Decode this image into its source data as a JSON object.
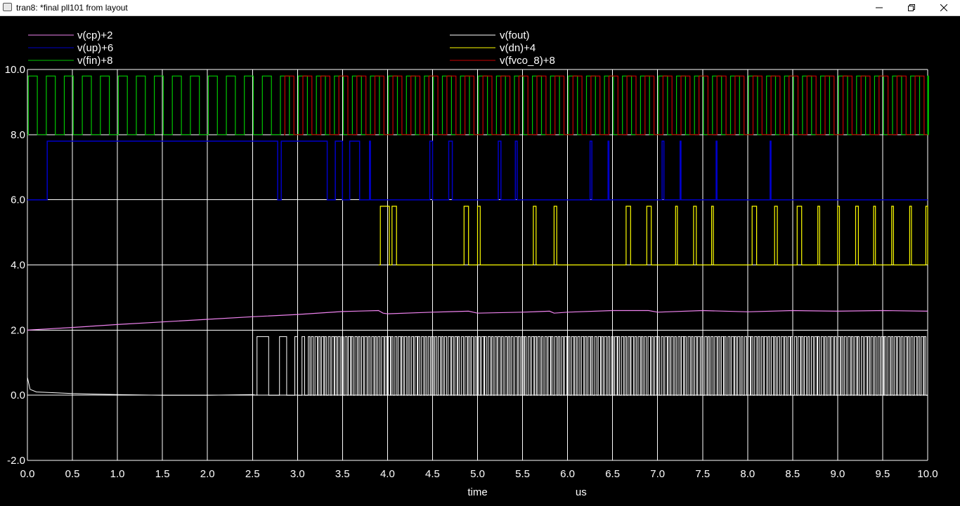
{
  "window": {
    "title": "tran8: *final pll101 from layout",
    "icons": {
      "app": "app-window-icon",
      "minimize": "minimize-icon",
      "maximize": "restore-icon",
      "close": "close-icon"
    }
  },
  "colors": {
    "background": "#000000",
    "grid": "#ffffff",
    "cp": "#ee82ee",
    "up": "#0000c8",
    "fin": "#00c800",
    "fout": "#ffffff",
    "dn": "#ffff00",
    "fvco": "#c80000"
  },
  "chart_data": {
    "type": "line",
    "xlabel": "time",
    "xunit": "us",
    "xlim": [
      0,
      10
    ],
    "ylim": [
      -2,
      10
    ],
    "grid": true,
    "legend_placement": "top",
    "x_ticks": [
      "0.0",
      "0.5",
      "1.0",
      "1.5",
      "2.0",
      "2.5",
      "3.0",
      "3.5",
      "4.0",
      "4.5",
      "5.0",
      "5.5",
      "6.0",
      "6.5",
      "7.0",
      "7.5",
      "8.0",
      "8.5",
      "9.0",
      "9.5",
      "10.0"
    ],
    "y_ticks": [
      "10.0",
      "8.0",
      "6.0",
      "4.0",
      "2.0",
      "0.0",
      "-2.0"
    ],
    "series": [
      {
        "key": "cp",
        "name": "v(cp)+2",
        "legend_col": 0,
        "legend_row": 0
      },
      {
        "key": "up",
        "name": "v(up)+6",
        "legend_col": 0,
        "legend_row": 1
      },
      {
        "key": "fin",
        "name": "v(fin)+8",
        "legend_col": 0,
        "legend_row": 2
      },
      {
        "key": "fout",
        "name": "v(fout)",
        "legend_col": 1,
        "legend_row": 0
      },
      {
        "key": "dn",
        "name": "v(dn)+4",
        "legend_col": 1,
        "legend_row": 1
      },
      {
        "key": "fvco",
        "name": "v(fvco_8)+8",
        "legend_col": 1,
        "legend_row": 2
      }
    ],
    "traces": {
      "cp": {
        "points": [
          [
            0,
            2.0
          ],
          [
            0.5,
            2.08
          ],
          [
            1,
            2.17
          ],
          [
            1.5,
            2.25
          ],
          [
            2,
            2.33
          ],
          [
            2.5,
            2.41
          ],
          [
            3,
            2.48
          ],
          [
            3.5,
            2.57
          ],
          [
            3.9,
            2.6
          ],
          [
            3.95,
            2.52
          ],
          [
            4.0,
            2.5
          ],
          [
            4.5,
            2.55
          ],
          [
            4.9,
            2.58
          ],
          [
            5.0,
            2.52
          ],
          [
            5.5,
            2.55
          ],
          [
            5.8,
            2.58
          ],
          [
            5.85,
            2.52
          ],
          [
            6.0,
            2.55
          ],
          [
            6.5,
            2.6
          ],
          [
            6.9,
            2.6
          ],
          [
            7.0,
            2.55
          ],
          [
            7.5,
            2.6
          ],
          [
            8.0,
            2.56
          ],
          [
            8.5,
            2.6
          ],
          [
            9.0,
            2.58
          ],
          [
            9.5,
            2.6
          ],
          [
            10,
            2.58
          ]
        ]
      },
      "up": {
        "base": 6.0,
        "high": 7.8,
        "pulses": [
          [
            0.22,
            2.78
          ],
          [
            2.82,
            3.33
          ],
          [
            3.42,
            3.5
          ],
          [
            3.58,
            3.69
          ],
          [
            3.8,
            3.81
          ],
          [
            4.47,
            4.5
          ],
          [
            4.68,
            4.72
          ],
          [
            5.23,
            5.26
          ],
          [
            5.42,
            5.44
          ],
          [
            6.25,
            6.27
          ],
          [
            6.45,
            6.46
          ],
          [
            7.05,
            7.07
          ],
          [
            7.25,
            7.26
          ],
          [
            7.65,
            7.66
          ],
          [
            8.25,
            8.26
          ]
        ]
      },
      "dn": {
        "base": 4.0,
        "high": 5.8,
        "pulses": [
          [
            3.92,
            4.02
          ],
          [
            4.05,
            4.1
          ],
          [
            4.85,
            4.9
          ],
          [
            5.0,
            5.03
          ],
          [
            5.62,
            5.65
          ],
          [
            5.85,
            5.88
          ],
          [
            6.65,
            6.7
          ],
          [
            6.88,
            6.93
          ],
          [
            7.2,
            7.22
          ],
          [
            7.4,
            7.43
          ],
          [
            7.6,
            7.62
          ],
          [
            8.05,
            8.1
          ],
          [
            8.3,
            8.33
          ],
          [
            8.55,
            8.6
          ],
          [
            8.78,
            8.8
          ],
          [
            9.0,
            9.02
          ],
          [
            9.2,
            9.23
          ],
          [
            9.4,
            9.42
          ],
          [
            9.6,
            9.62
          ],
          [
            9.8,
            9.82
          ],
          [
            9.98,
            10.0
          ]
        ]
      },
      "fin": {
        "low": 8.0,
        "high": 9.8,
        "period": 0.2,
        "start": 0.0
      },
      "fvco": {
        "low": 8.0,
        "high": 9.8,
        "period": 0.2,
        "start": 2.85
      },
      "fout": {
        "settle": [
          [
            0.0,
            0.55
          ],
          [
            0.03,
            0.18
          ],
          [
            0.1,
            0.1
          ],
          [
            0.5,
            0.05
          ],
          [
            1.0,
            0.02
          ],
          [
            1.5,
            0.0
          ],
          [
            2.0,
            0.0
          ],
          [
            2.5,
            0.02
          ]
        ],
        "low": 0.0,
        "high": 1.8,
        "bursts": [
          [
            2.55,
            2.68
          ],
          [
            2.8,
            2.88
          ],
          [
            2.97,
            3.0
          ],
          [
            3.05,
            3.08
          ]
        ],
        "dense_from": 3.12,
        "dense_to": 10.0
      }
    }
  }
}
